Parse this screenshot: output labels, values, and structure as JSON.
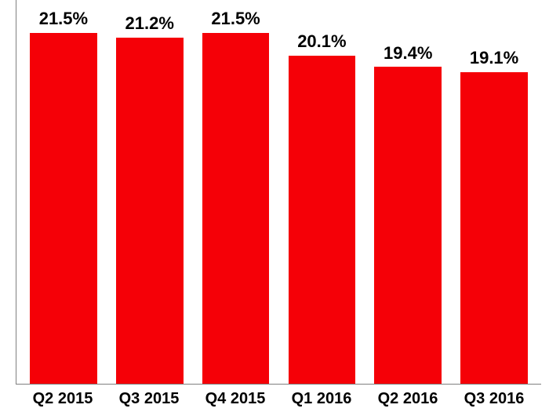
{
  "chart": {
    "type": "bar",
    "categories": [
      "Q2 2015",
      "Q3 2015",
      "Q4 2015",
      "Q1 2016",
      "Q2 2016",
      "Q3 2016"
    ],
    "values": [
      21.5,
      21.2,
      21.5,
      20.1,
      19.4,
      19.1
    ],
    "value_labels": [
      "21.5%",
      "21.2%",
      "21.5%",
      "20.1%",
      "19.4%",
      "19.1%"
    ],
    "bar_color": "#f50007",
    "background_color": "#ffffff",
    "axis_color": "#808080",
    "text_color": "#000000",
    "max_value": 23.5,
    "label_fontsize": 22,
    "xlabel_fontsize": 20,
    "font_weight": "bold",
    "bar_width_pct": 78
  }
}
